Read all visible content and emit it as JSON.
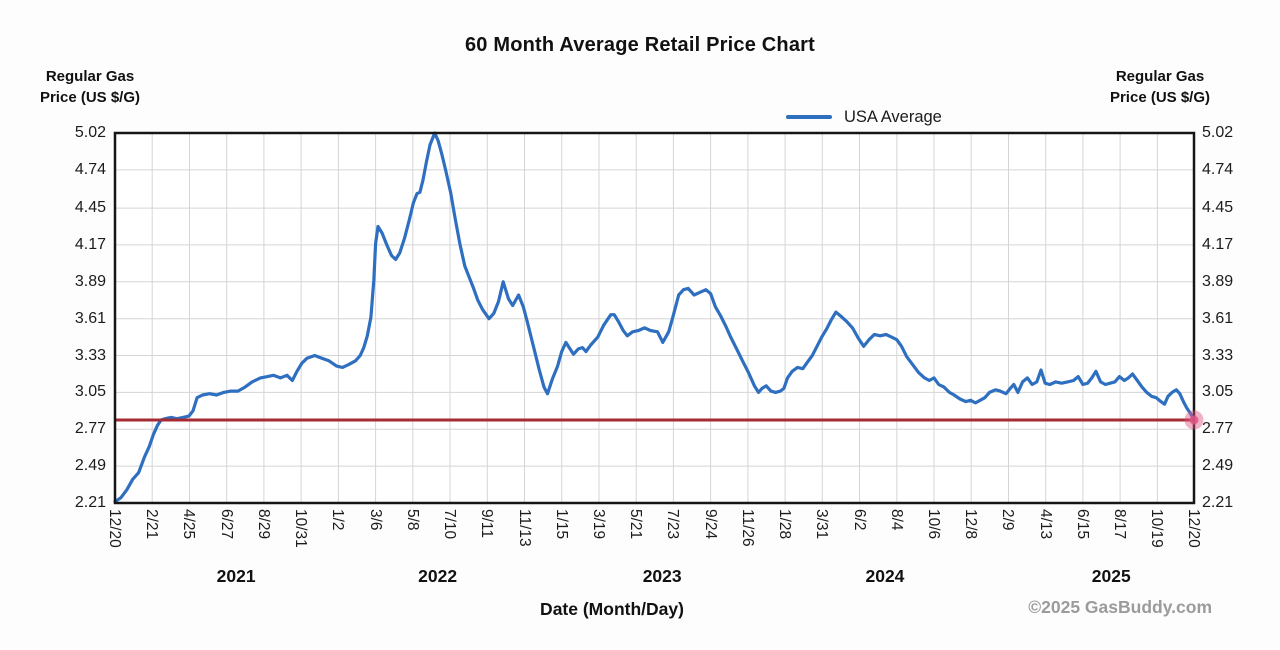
{
  "colors": {
    "series_blue": "#2e6fc0",
    "current_price_red": "#a62b33",
    "current_price_dot_pink": "#e05585",
    "grid": "#d5d5d5",
    "plot_border": "#161616",
    "watermark_gray": "#9b9b9b"
  },
  "chart_data": {
    "type": "line",
    "title": "60 Month Average Retail Price Chart",
    "xlabel": "Date (Month/Day)",
    "ylabel": "Regular Gas\nPrice (US $/G)",
    "watermark": "©2025 GasBuddy.com",
    "legend": {
      "position": "top",
      "entries": [
        "USA Average"
      ]
    },
    "grid": true,
    "x_unit": "days since 2020-12-20",
    "x_range": [
      0,
      1826
    ],
    "y_range": [
      2.21,
      5.02
    ],
    "y_ticks": [
      "5.02",
      "4.74",
      "4.45",
      "4.17",
      "3.89",
      "3.61",
      "3.33",
      "3.05",
      "2.77",
      "2.49",
      "2.21"
    ],
    "x_ticks": [
      {
        "label": "12/20",
        "day": 0
      },
      {
        "label": "2/21",
        "day": 63
      },
      {
        "label": "4/25",
        "day": 126
      },
      {
        "label": "6/27",
        "day": 189
      },
      {
        "label": "8/29",
        "day": 252
      },
      {
        "label": "10/31",
        "day": 315
      },
      {
        "label": "1/2",
        "day": 378
      },
      {
        "label": "3/6",
        "day": 441
      },
      {
        "label": "5/8",
        "day": 504
      },
      {
        "label": "7/10",
        "day": 567
      },
      {
        "label": "9/11",
        "day": 630
      },
      {
        "label": "11/13",
        "day": 693
      },
      {
        "label": "1/15",
        "day": 756
      },
      {
        "label": "3/19",
        "day": 819
      },
      {
        "label": "5/21",
        "day": 882
      },
      {
        "label": "7/23",
        "day": 945
      },
      {
        "label": "9/24",
        "day": 1008
      },
      {
        "label": "11/26",
        "day": 1071
      },
      {
        "label": "1/28",
        "day": 1134
      },
      {
        "label": "3/31",
        "day": 1197
      },
      {
        "label": "6/2",
        "day": 1260
      },
      {
        "label": "8/4",
        "day": 1323
      },
      {
        "label": "10/6",
        "day": 1386
      },
      {
        "label": "12/8",
        "day": 1449
      },
      {
        "label": "2/9",
        "day": 1512
      },
      {
        "label": "4/13",
        "day": 1575
      },
      {
        "label": "6/15",
        "day": 1638
      },
      {
        "label": "8/17",
        "day": 1701
      },
      {
        "label": "10/19",
        "day": 1764
      },
      {
        "label": "12/20",
        "day": 1826
      }
    ],
    "year_labels": [
      {
        "label": "2021",
        "day": 205
      },
      {
        "label": "2022",
        "day": 546
      },
      {
        "label": "2023",
        "day": 926
      },
      {
        "label": "2024",
        "day": 1303
      },
      {
        "label": "2025",
        "day": 1686
      }
    ],
    "current_price": {
      "value": 2.84,
      "day": 1826
    },
    "series": [
      {
        "name": "USA Average",
        "color": "#2e6fc0",
        "points": [
          [
            0,
            2.22
          ],
          [
            10,
            2.25
          ],
          [
            20,
            2.31
          ],
          [
            30,
            2.39
          ],
          [
            40,
            2.44
          ],
          [
            50,
            2.56
          ],
          [
            58,
            2.64
          ],
          [
            65,
            2.73
          ],
          [
            72,
            2.8
          ],
          [
            78,
            2.84
          ],
          [
            85,
            2.85
          ],
          [
            95,
            2.86
          ],
          [
            105,
            2.85
          ],
          [
            115,
            2.86
          ],
          [
            125,
            2.87
          ],
          [
            132,
            2.91
          ],
          [
            139,
            3.01
          ],
          [
            148,
            3.03
          ],
          [
            160,
            3.04
          ],
          [
            172,
            3.03
          ],
          [
            184,
            3.05
          ],
          [
            196,
            3.06
          ],
          [
            208,
            3.06
          ],
          [
            220,
            3.09
          ],
          [
            232,
            3.13
          ],
          [
            246,
            3.16
          ],
          [
            258,
            3.17
          ],
          [
            268,
            3.18
          ],
          [
            280,
            3.16
          ],
          [
            291,
            3.18
          ],
          [
            300,
            3.14
          ],
          [
            308,
            3.21
          ],
          [
            316,
            3.27
          ],
          [
            325,
            3.31
          ],
          [
            338,
            3.33
          ],
          [
            350,
            3.31
          ],
          [
            362,
            3.29
          ],
          [
            375,
            3.25
          ],
          [
            385,
            3.24
          ],
          [
            395,
            3.26
          ],
          [
            407,
            3.29
          ],
          [
            415,
            3.33
          ],
          [
            421,
            3.39
          ],
          [
            427,
            3.48
          ],
          [
            433,
            3.62
          ],
          [
            438,
            3.9
          ],
          [
            441,
            4.18
          ],
          [
            445,
            4.31
          ],
          [
            452,
            4.26
          ],
          [
            460,
            4.17
          ],
          [
            468,
            4.09
          ],
          [
            475,
            4.06
          ],
          [
            482,
            4.11
          ],
          [
            490,
            4.22
          ],
          [
            498,
            4.36
          ],
          [
            505,
            4.49
          ],
          [
            511,
            4.56
          ],
          [
            516,
            4.57
          ],
          [
            521,
            4.66
          ],
          [
            527,
            4.8
          ],
          [
            533,
            4.93
          ],
          [
            541,
            5.02
          ],
          [
            547,
            4.96
          ],
          [
            553,
            4.86
          ],
          [
            560,
            4.73
          ],
          [
            568,
            4.57
          ],
          [
            576,
            4.36
          ],
          [
            584,
            4.17
          ],
          [
            592,
            4.01
          ],
          [
            598,
            3.94
          ],
          [
            606,
            3.85
          ],
          [
            614,
            3.75
          ],
          [
            622,
            3.68
          ],
          [
            633,
            3.61
          ],
          [
            641,
            3.65
          ],
          [
            649,
            3.74
          ],
          [
            657,
            3.89
          ],
          [
            666,
            3.76
          ],
          [
            673,
            3.71
          ],
          [
            683,
            3.79
          ],
          [
            691,
            3.7
          ],
          [
            698,
            3.58
          ],
          [
            708,
            3.4
          ],
          [
            718,
            3.22
          ],
          [
            726,
            3.09
          ],
          [
            732,
            3.04
          ],
          [
            740,
            3.15
          ],
          [
            749,
            3.25
          ],
          [
            756,
            3.36
          ],
          [
            763,
            3.43
          ],
          [
            770,
            3.38
          ],
          [
            776,
            3.34
          ],
          [
            784,
            3.38
          ],
          [
            791,
            3.39
          ],
          [
            797,
            3.36
          ],
          [
            805,
            3.41
          ],
          [
            817,
            3.47
          ],
          [
            827,
            3.56
          ],
          [
            839,
            3.64
          ],
          [
            845,
            3.64
          ],
          [
            853,
            3.58
          ],
          [
            860,
            3.52
          ],
          [
            867,
            3.48
          ],
          [
            876,
            3.51
          ],
          [
            886,
            3.52
          ],
          [
            896,
            3.54
          ],
          [
            906,
            3.52
          ],
          [
            918,
            3.51
          ],
          [
            927,
            3.43
          ],
          [
            937,
            3.51
          ],
          [
            944,
            3.62
          ],
          [
            954,
            3.79
          ],
          [
            962,
            3.83
          ],
          [
            970,
            3.84
          ],
          [
            980,
            3.79
          ],
          [
            990,
            3.81
          ],
          [
            1000,
            3.83
          ],
          [
            1008,
            3.8
          ],
          [
            1016,
            3.7
          ],
          [
            1025,
            3.63
          ],
          [
            1034,
            3.55
          ],
          [
            1042,
            3.47
          ],
          [
            1052,
            3.38
          ],
          [
            1062,
            3.29
          ],
          [
            1072,
            3.2
          ],
          [
            1082,
            3.1
          ],
          [
            1089,
            3.05
          ],
          [
            1095,
            3.08
          ],
          [
            1102,
            3.1
          ],
          [
            1110,
            3.06
          ],
          [
            1118,
            3.05
          ],
          [
            1126,
            3.06
          ],
          [
            1132,
            3.08
          ],
          [
            1138,
            3.16
          ],
          [
            1146,
            3.21
          ],
          [
            1155,
            3.24
          ],
          [
            1164,
            3.23
          ],
          [
            1172,
            3.28
          ],
          [
            1180,
            3.33
          ],
          [
            1188,
            3.4
          ],
          [
            1196,
            3.47
          ],
          [
            1204,
            3.53
          ],
          [
            1212,
            3.6
          ],
          [
            1220,
            3.66
          ],
          [
            1228,
            3.63
          ],
          [
            1238,
            3.59
          ],
          [
            1248,
            3.54
          ],
          [
            1258,
            3.46
          ],
          [
            1267,
            3.4
          ],
          [
            1276,
            3.45
          ],
          [
            1285,
            3.49
          ],
          [
            1295,
            3.48
          ],
          [
            1305,
            3.49
          ],
          [
            1314,
            3.47
          ],
          [
            1323,
            3.45
          ],
          [
            1331,
            3.4
          ],
          [
            1340,
            3.32
          ],
          [
            1350,
            3.26
          ],
          [
            1360,
            3.2
          ],
          [
            1370,
            3.16
          ],
          [
            1378,
            3.14
          ],
          [
            1386,
            3.16
          ],
          [
            1394,
            3.11
          ],
          [
            1403,
            3.09
          ],
          [
            1412,
            3.05
          ],
          [
            1420,
            3.03
          ],
          [
            1430,
            3.0
          ],
          [
            1440,
            2.98
          ],
          [
            1448,
            2.99
          ],
          [
            1456,
            2.97
          ],
          [
            1464,
            2.99
          ],
          [
            1472,
            3.01
          ],
          [
            1480,
            3.05
          ],
          [
            1490,
            3.07
          ],
          [
            1498,
            3.06
          ],
          [
            1508,
            3.04
          ],
          [
            1515,
            3.08
          ],
          [
            1521,
            3.11
          ],
          [
            1528,
            3.05
          ],
          [
            1536,
            3.13
          ],
          [
            1544,
            3.16
          ],
          [
            1552,
            3.11
          ],
          [
            1560,
            3.13
          ],
          [
            1567,
            3.22
          ],
          [
            1574,
            3.12
          ],
          [
            1582,
            3.11
          ],
          [
            1592,
            3.13
          ],
          [
            1602,
            3.12
          ],
          [
            1612,
            3.13
          ],
          [
            1622,
            3.14
          ],
          [
            1630,
            3.17
          ],
          [
            1638,
            3.11
          ],
          [
            1646,
            3.12
          ],
          [
            1653,
            3.16
          ],
          [
            1660,
            3.21
          ],
          [
            1668,
            3.13
          ],
          [
            1676,
            3.11
          ],
          [
            1684,
            3.12
          ],
          [
            1692,
            3.13
          ],
          [
            1700,
            3.17
          ],
          [
            1708,
            3.14
          ],
          [
            1715,
            3.16
          ],
          [
            1722,
            3.19
          ],
          [
            1730,
            3.14
          ],
          [
            1738,
            3.09
          ],
          [
            1746,
            3.05
          ],
          [
            1754,
            3.02
          ],
          [
            1762,
            3.01
          ],
          [
            1770,
            2.98
          ],
          [
            1776,
            2.96
          ],
          [
            1782,
            3.02
          ],
          [
            1789,
            3.05
          ],
          [
            1796,
            3.07
          ],
          [
            1802,
            3.04
          ],
          [
            1808,
            2.98
          ],
          [
            1814,
            2.93
          ],
          [
            1820,
            2.89
          ],
          [
            1826,
            2.84
          ]
        ]
      }
    ]
  }
}
